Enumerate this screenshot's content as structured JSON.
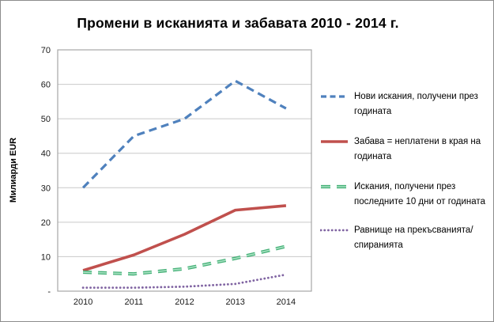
{
  "window": {
    "background": "#FFFFFF",
    "frame_border_color": "#8C8C8C"
  },
  "chart_data": {
    "type": "line",
    "title": "Промени в исканията и забавата 2010 - 2014 г.",
    "ylabel": "Милиарди EUR",
    "xlabel": "",
    "categories": [
      "2010",
      "2011",
      "2012",
      "2013",
      "2014"
    ],
    "ylim": [
      0,
      70
    ],
    "ytick_step": 10,
    "ytick_labels": [
      "-",
      "10",
      "20",
      "30",
      "40",
      "50",
      "60",
      "70"
    ],
    "grid": true,
    "legend_position": "right",
    "colors": {
      "grid": "#C9C9C9",
      "axis_frame": "#A6A6A6",
      "tick_text": "#1A1A1A"
    },
    "series": [
      {
        "name": "Нови искания, получени през годината",
        "values": [
          30,
          45,
          50,
          61,
          53
        ],
        "color": "#4F81BD",
        "style": "dashed"
      },
      {
        "name": "Забава = неплатени в края на годината",
        "values": [
          6,
          10.5,
          16.5,
          23.5,
          24.8
        ],
        "color": "#C0504D",
        "style": "solid"
      },
      {
        "name": "Искания, получени през последните 10 дни от годината",
        "values": [
          5.5,
          5,
          6.5,
          9.5,
          13
        ],
        "color": "#45B077",
        "inner_color": "#A9E2C3",
        "style": "long-dashed"
      },
      {
        "name": "Равнище на прекъсванията/спиранията",
        "values": [
          1,
          1,
          1.3,
          2.1,
          4.8
        ],
        "color": "#8064A2",
        "style": "dotted"
      }
    ]
  }
}
